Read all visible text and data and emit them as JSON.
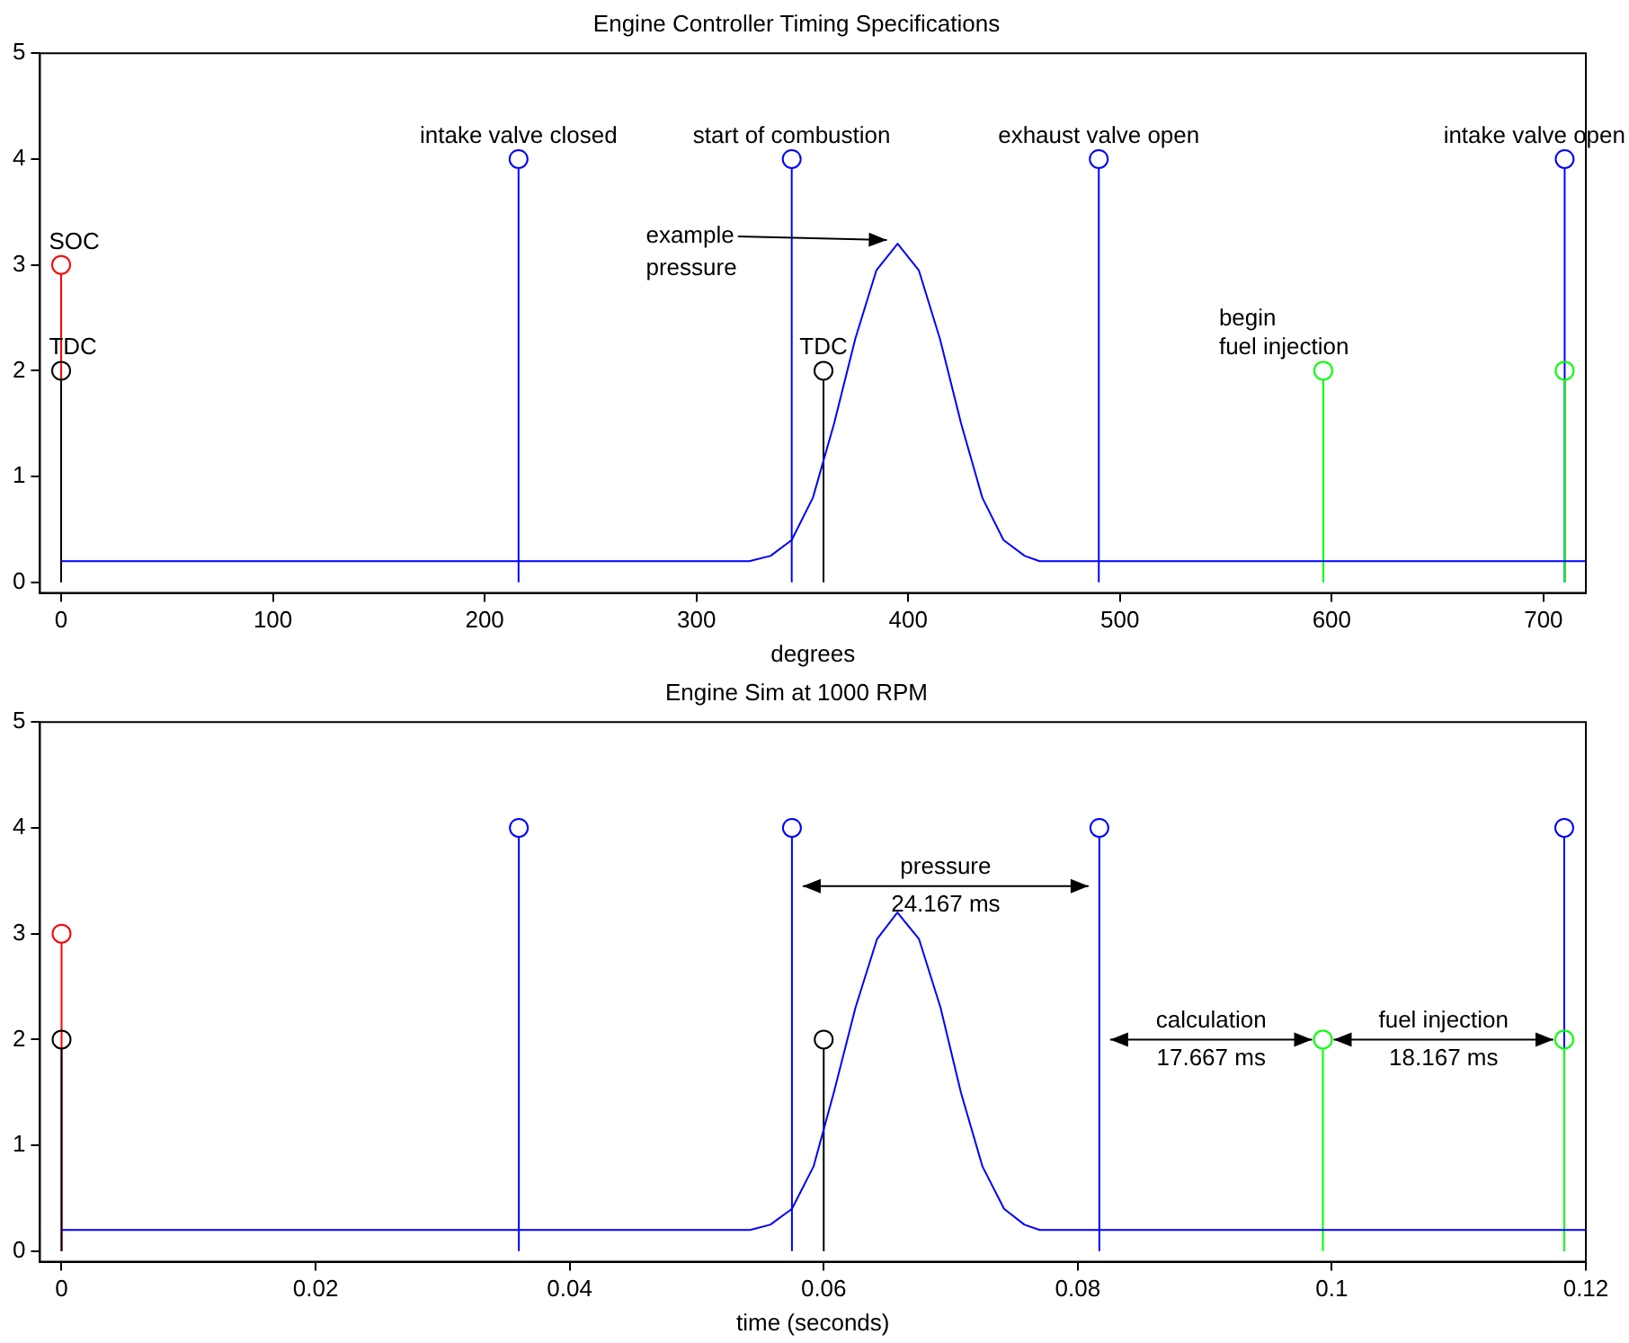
{
  "chart_data": [
    {
      "type": "lollipop",
      "title": "Engine Controller Timing Specifications",
      "xlabel": "degrees",
      "xlim": [
        -10,
        720
      ],
      "xticks": [
        0,
        100,
        200,
        300,
        400,
        500,
        600,
        700
      ],
      "ylim": [
        -0.1,
        5
      ],
      "yticks": [
        0,
        1,
        2,
        3,
        4,
        5
      ],
      "grid": false,
      "legend": false,
      "series": [
        {
          "color": "#ff0000",
          "marker": "circle",
          "x": [
            0
          ],
          "values": [
            3
          ]
        },
        {
          "color": "#000000",
          "marker": "circle",
          "x": [
            0,
            360
          ],
          "values": [
            2,
            2
          ]
        },
        {
          "color": "#0000ff",
          "marker": "circle",
          "x": [
            216,
            345,
            490,
            710
          ],
          "values": [
            4,
            4,
            4,
            4
          ]
        },
        {
          "color": "#00ff00",
          "marker": "circle",
          "x": [
            596,
            710
          ],
          "values": [
            2,
            2
          ]
        },
        {
          "type": "line",
          "color": "#0000ff",
          "x": [
            0,
            325,
            335,
            345,
            355,
            365,
            375,
            385,
            395,
            405,
            415,
            425,
            435,
            445,
            455,
            462,
            720
          ],
          "values": [
            0.2,
            0.2,
            0.25,
            0.4,
            0.8,
            1.5,
            2.3,
            2.95,
            3.2,
            2.95,
            2.3,
            1.5,
            0.8,
            0.4,
            0.25,
            0.2,
            0.2
          ]
        }
      ],
      "annotations": [
        {
          "text": "SOC",
          "x": 0,
          "y": 3
        },
        {
          "text": "TDC",
          "x": 0,
          "y": 2
        },
        {
          "text": "intake valve closed",
          "x": 216,
          "y": 4
        },
        {
          "text": "start of combustion",
          "x": 345,
          "y": 4
        },
        {
          "text": "exhaust valve open",
          "x": 490,
          "y": 4
        },
        {
          "text": "intake valve open",
          "x": 710,
          "y": 4
        },
        {
          "text": "TDC",
          "x": 360,
          "y": 2
        },
        {
          "text": "begin\nfuel injection",
          "x": 596,
          "y": 2
        },
        {
          "text": "example\npressure",
          "x": 395,
          "y": 3.2
        }
      ]
    },
    {
      "type": "lollipop",
      "title": "Engine Sim at 1000 RPM",
      "xlabel": "time (seconds)",
      "xlim": [
        -0.0017,
        0.12
      ],
      "xticks": [
        0,
        0.02,
        0.04,
        0.06,
        0.08,
        0.1,
        0.12
      ],
      "ylim": [
        -0.1,
        5
      ],
      "yticks": [
        0,
        1,
        2,
        3,
        4,
        5
      ],
      "grid": false,
      "legend": false,
      "series": [
        {
          "color": "#ff0000",
          "marker": "circle",
          "x": [
            0
          ],
          "values": [
            3
          ]
        },
        {
          "color": "#000000",
          "marker": "circle",
          "x": [
            0,
            0.06
          ],
          "values": [
            2,
            2
          ]
        },
        {
          "color": "#0000ff",
          "marker": "circle",
          "x": [
            0.036,
            0.0575,
            0.0817,
            0.1183
          ],
          "values": [
            4,
            4,
            4,
            4
          ]
        },
        {
          "color": "#00ff00",
          "marker": "circle",
          "x": [
            0.0993,
            0.1183
          ],
          "values": [
            2,
            2
          ]
        },
        {
          "type": "line",
          "color": "#0000ff",
          "x": [
            0,
            0.0542,
            0.0558,
            0.0575,
            0.0592,
            0.0608,
            0.0625,
            0.0642,
            0.0658,
            0.0675,
            0.0692,
            0.0708,
            0.0725,
            0.0742,
            0.0758,
            0.077,
            0.12
          ],
          "values": [
            0.2,
            0.2,
            0.25,
            0.4,
            0.8,
            1.5,
            2.3,
            2.95,
            3.2,
            2.95,
            2.3,
            1.5,
            0.8,
            0.4,
            0.25,
            0.2,
            0.2
          ]
        }
      ],
      "annotations": [
        "pressure\n24.167 ms",
        "calculation\n17.667 ms",
        "fuel injection\n18.167 ms"
      ]
    }
  ]
}
